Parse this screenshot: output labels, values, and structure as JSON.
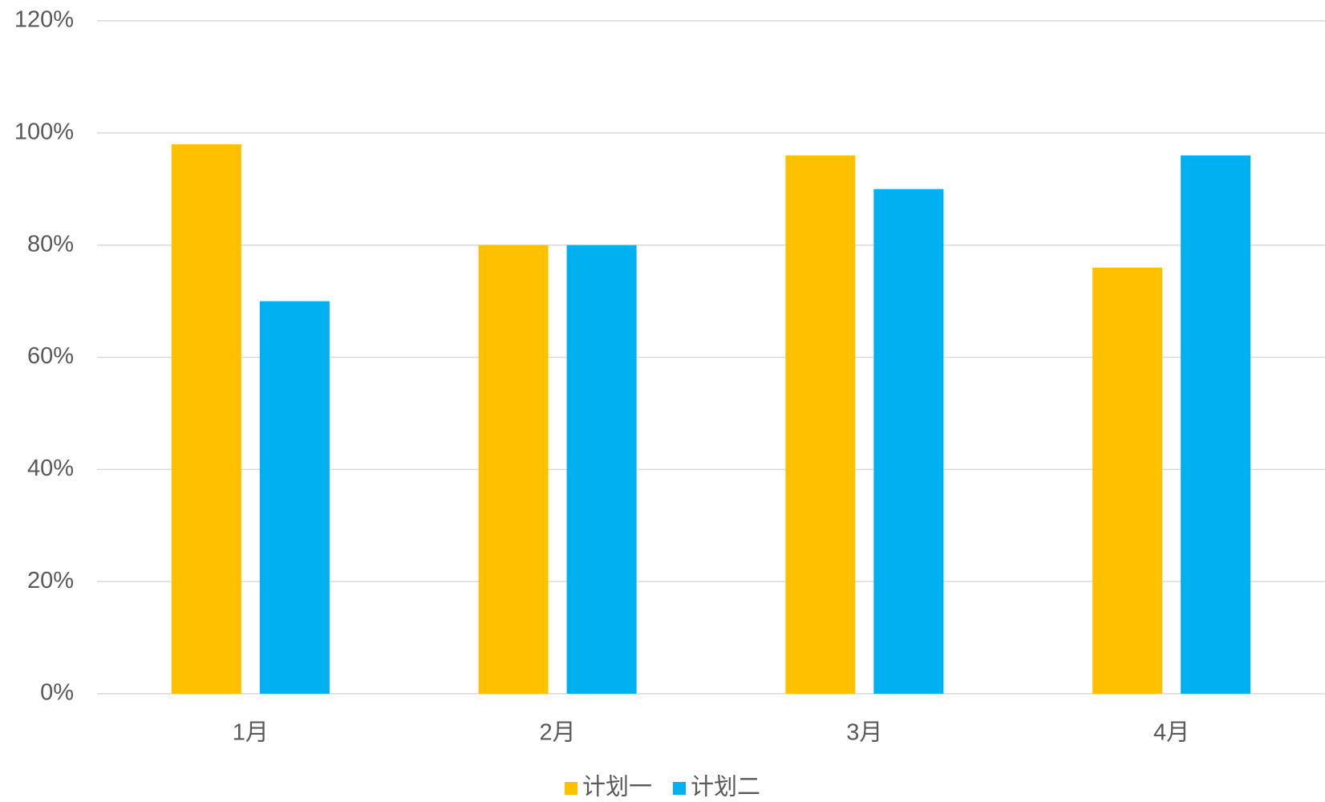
{
  "chart_data": {
    "type": "bar",
    "title": "",
    "xlabel": "",
    "ylabel": "",
    "categories": [
      "1月",
      "2月",
      "3月",
      "4月"
    ],
    "series": [
      {
        "name": "计划一",
        "color": "#FFC000",
        "values": [
          0.98,
          0.8,
          0.96,
          0.76
        ]
      },
      {
        "name": "计划二",
        "color": "#00B0F0",
        "values": [
          0.7,
          0.8,
          0.9,
          0.96
        ]
      }
    ],
    "ylim": [
      0,
      1.2
    ],
    "y_ticks": [
      {
        "value": 0,
        "label": "0%"
      },
      {
        "value": 0.2,
        "label": "20%"
      },
      {
        "value": 0.4,
        "label": "40%"
      },
      {
        "value": 0.6,
        "label": "60%"
      },
      {
        "value": 0.8,
        "label": "80%"
      },
      {
        "value": 1.0,
        "label": "100%"
      },
      {
        "value": 1.2,
        "label": "120%"
      }
    ],
    "grid": true,
    "legend_position": "bottom"
  }
}
